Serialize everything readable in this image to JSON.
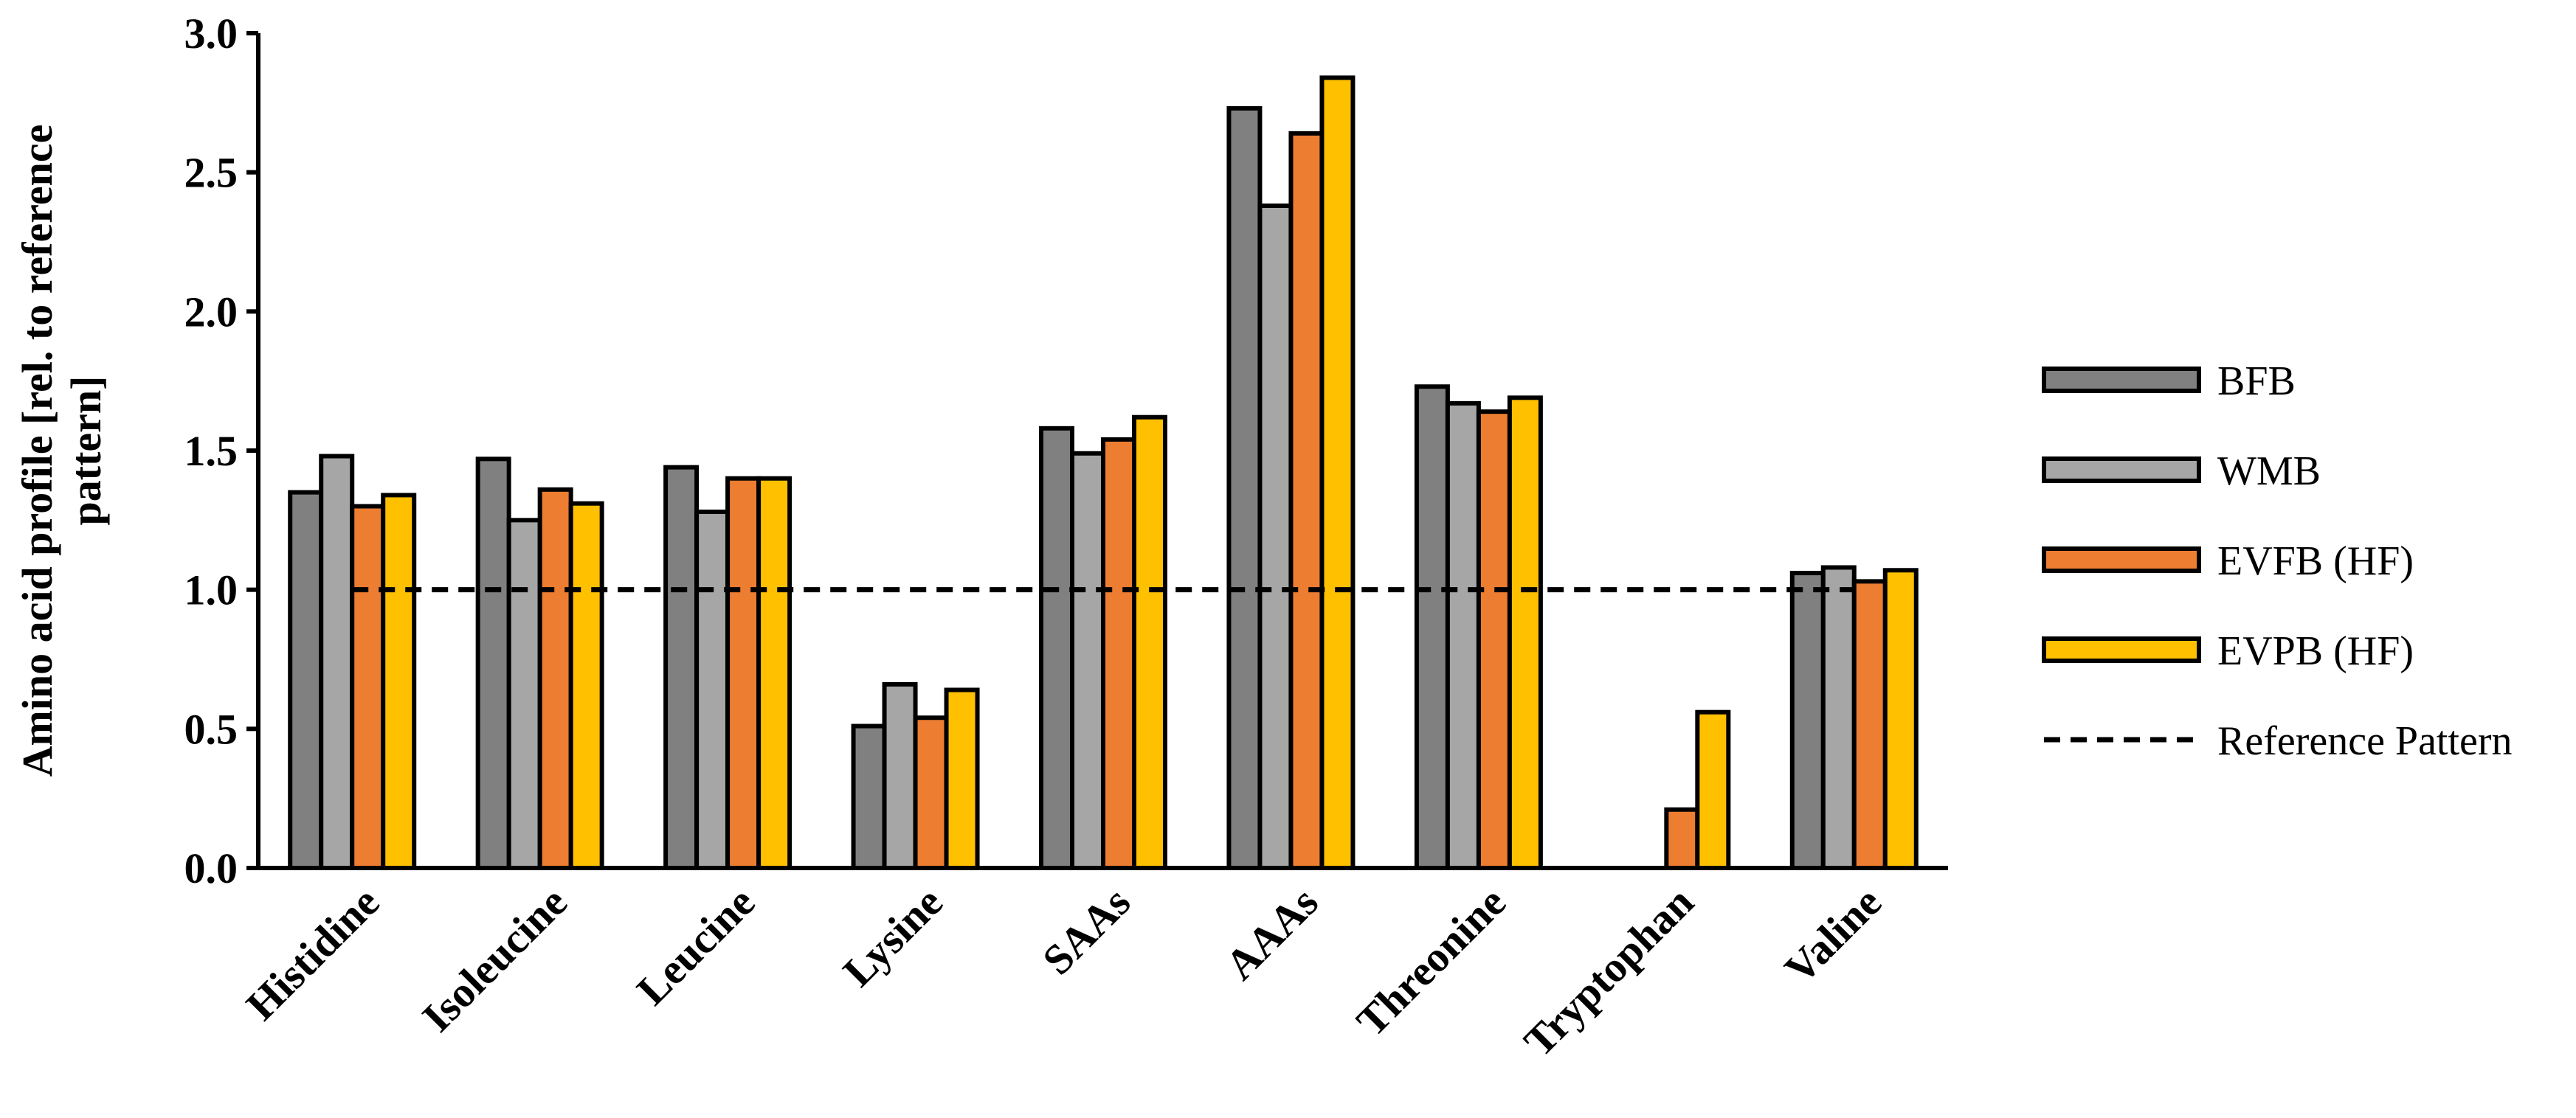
{
  "chart_data": {
    "type": "bar",
    "title": "",
    "xlabel": "",
    "ylabel": "Amino acid profile [rel. to reference pattern]",
    "ylabel_lines": [
      "Amino acid profile [rel. to reference",
      "pattern]"
    ],
    "ylim": [
      0,
      3.0
    ],
    "yticks": [
      0.0,
      0.5,
      1.0,
      1.5,
      2.0,
      2.5,
      3.0
    ],
    "ytick_labels": [
      "0.0",
      "0.5",
      "1.0",
      "1.5",
      "2.0",
      "2.5",
      "3.0"
    ],
    "grid": false,
    "legend_position": "right",
    "categories": [
      "Histidine",
      "Isoleucine",
      "Leucine",
      "Lysine",
      "SAAs",
      "AAAs",
      "Threonine",
      "Tryptophan",
      "Valine"
    ],
    "series": [
      {
        "name": "BFB",
        "color": "#808080",
        "values": [
          1.35,
          1.47,
          1.44,
          0.51,
          1.58,
          2.73,
          1.73,
          null,
          1.06
        ]
      },
      {
        "name": "WMB",
        "color": "#A6A6A6",
        "values": [
          1.48,
          1.25,
          1.28,
          0.66,
          1.49,
          2.38,
          1.67,
          null,
          1.08
        ]
      },
      {
        "name": "EVFB (HF)",
        "color": "#ED7D31",
        "values": [
          1.3,
          1.36,
          1.4,
          0.54,
          1.54,
          2.64,
          1.64,
          0.21,
          1.03
        ]
      },
      {
        "name": "EVPB (HF)",
        "color": "#FFC000",
        "values": [
          1.34,
          1.31,
          1.4,
          0.64,
          1.62,
          2.84,
          1.69,
          0.56,
          1.07
        ]
      }
    ],
    "reference_line": {
      "name": "Reference Pattern",
      "value": 1.0,
      "style": "dashed",
      "color": "#000000"
    }
  }
}
